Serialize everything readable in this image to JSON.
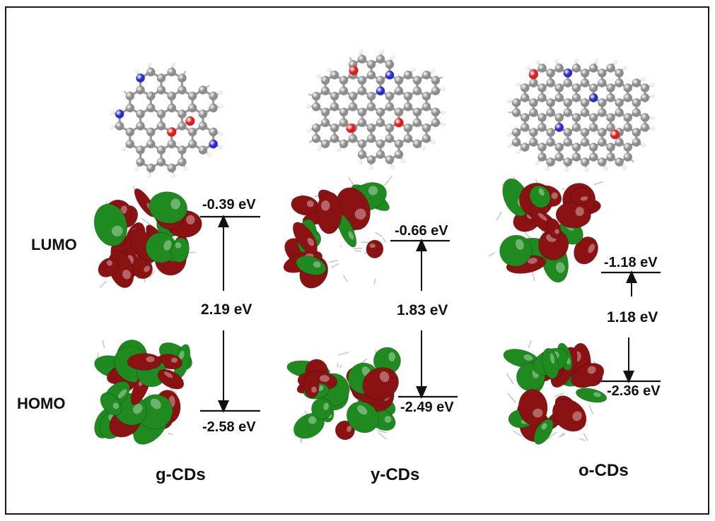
{
  "rows": {
    "lumo": "LUMO",
    "homo": "HOMO"
  },
  "panels": [
    {
      "caption": "g-CDs",
      "lumo_energy": "-0.39 eV",
      "homo_energy": "-2.58 eV",
      "gap": "2.19 eV"
    },
    {
      "caption": "y-CDs",
      "lumo_energy": "-0.66 eV",
      "homo_energy": "-2.49 eV",
      "gap": "1.83 eV"
    },
    {
      "caption": "o-CDs",
      "lumo_energy": "-1.18 eV",
      "homo_energy": "-2.36 eV",
      "gap": "1.18 eV"
    }
  ],
  "colors": {
    "carbon": "#8c8c8c",
    "hydrogen": "#ececec",
    "oxygen": "#d81e1e",
    "nitrogen": "#2b2bc8",
    "lobe_positive": "#8b1212",
    "lobe_negative": "#1f8a1f"
  }
}
